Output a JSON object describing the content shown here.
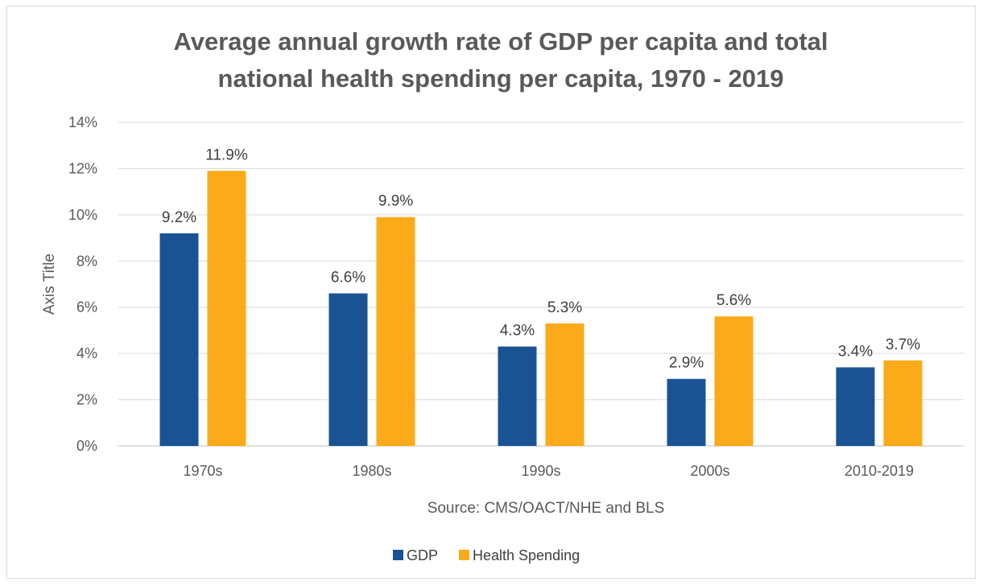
{
  "chart_data": {
    "type": "bar",
    "title_line1": "Average annual growth rate of GDP per capita and total",
    "title_line2": "national health spending per capita, 1970 - 2019",
    "xlabel": "Source: CMS/OACT/NHE and BLS",
    "ylabel": "Axis Title",
    "categories": [
      "1970s",
      "1980s",
      "1990s",
      "2000s",
      "2010-2019"
    ],
    "series": [
      {
        "name": "GDP",
        "color": "#1a5394",
        "values": [
          9.2,
          6.6,
          4.3,
          2.9,
          3.4
        ],
        "labels": [
          "9.2%",
          "6.6%",
          "4.3%",
          "2.9%",
          "3.4%"
        ]
      },
      {
        "name": "Health Spending",
        "color": "#fbaa19",
        "values": [
          11.9,
          9.9,
          5.3,
          5.6,
          3.7
        ],
        "labels": [
          "11.9%",
          "9.9%",
          "5.3%",
          "5.6%",
          "3.7%"
        ]
      }
    ],
    "ylim": [
      0,
      14
    ],
    "yticks": [
      "0%",
      "2%",
      "4%",
      "6%",
      "8%",
      "10%",
      "12%",
      "14%"
    ],
    "grid": true,
    "legend_position": "bottom"
  }
}
